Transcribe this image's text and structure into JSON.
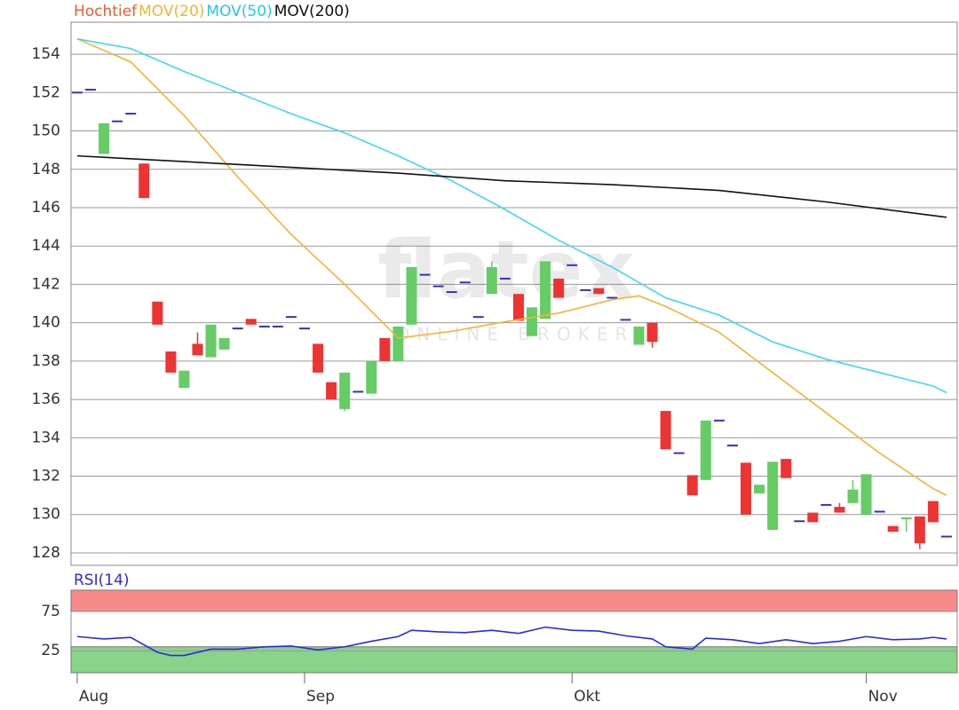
{
  "chart_data": [
    {
      "type": "candlestick",
      "name": "Hochtief",
      "name_color": "#f05a30",
      "up_color": "#66cc66",
      "down_color": "#ee3333",
      "flat_color": "#3333bb",
      "categories": [
        "Aug",
        null,
        null,
        null,
        null,
        null,
        null,
        null,
        null,
        null,
        null,
        null,
        null,
        null,
        null,
        null,
        null,
        "Sep",
        null,
        null,
        null,
        null,
        null,
        null,
        null,
        null,
        null,
        null,
        null,
        null,
        null,
        null,
        null,
        null,
        null,
        null,
        null,
        "Okt",
        null,
        null,
        null,
        null,
        null,
        null,
        null,
        null,
        null,
        null,
        null,
        null,
        null,
        null,
        null,
        null,
        null,
        null,
        null,
        null,
        null,
        "Nov",
        null,
        null,
        null,
        null,
        null,
        null
      ],
      "open": [
        152.0,
        152.15,
        148.8,
        150.5,
        150.9,
        148.3,
        141.1,
        138.5,
        136.6,
        138.9,
        138.2,
        138.6,
        139.7,
        140.2,
        139.8,
        139.8,
        140.3,
        139.7,
        138.9,
        136.9,
        135.5,
        136.4,
        136.3,
        139.2,
        138.0,
        139.9,
        142.5,
        141.9,
        141.6,
        142.1,
        140.3,
        141.5,
        142.3,
        141.5,
        139.3,
        140.2,
        142.3,
        143.0,
        141.7,
        141.8,
        141.3,
        140.15,
        138.85,
        140.0,
        135.4,
        133.2,
        132.05,
        131.8,
        134.9,
        133.6,
        132.7,
        131.1,
        129.2,
        132.9,
        129.65,
        130.1,
        130.5,
        130.4,
        130.6,
        130.0,
        130.15,
        129.4,
        129.75,
        129.9,
        130.7,
        128.85
      ],
      "high": [
        152.0,
        152.15,
        150.4,
        150.5,
        150.9,
        148.3,
        141.1,
        138.5,
        137.5,
        139.5,
        139.9,
        139.2,
        139.7,
        140.2,
        139.8,
        139.8,
        140.3,
        139.7,
        138.9,
        136.9,
        137.4,
        136.4,
        138.0,
        139.2,
        139.8,
        142.9,
        142.5,
        141.9,
        141.6,
        142.1,
        140.3,
        143.2,
        142.3,
        141.5,
        140.8,
        143.2,
        142.3,
        143.0,
        141.7,
        141.8,
        141.3,
        140.15,
        139.8,
        140.0,
        135.4,
        133.2,
        132.05,
        134.9,
        134.9,
        133.6,
        132.7,
        131.55,
        132.75,
        132.9,
        129.65,
        130.1,
        130.5,
        130.6,
        131.8,
        132.1,
        130.15,
        129.4,
        129.85,
        129.9,
        130.7,
        128.85
      ],
      "low": [
        152.0,
        152.15,
        148.8,
        150.5,
        150.9,
        146.5,
        139.9,
        137.4,
        136.6,
        138.3,
        138.2,
        138.6,
        139.7,
        139.9,
        139.8,
        139.8,
        140.3,
        139.7,
        137.4,
        136.0,
        135.4,
        136.4,
        136.3,
        138.0,
        138.0,
        139.9,
        142.5,
        141.9,
        141.6,
        142.1,
        140.3,
        141.5,
        142.3,
        140.1,
        139.3,
        140.2,
        141.3,
        143.0,
        141.7,
        141.5,
        141.3,
        140.15,
        138.85,
        138.7,
        133.4,
        133.2,
        131.0,
        131.8,
        134.9,
        133.6,
        130.0,
        131.1,
        129.2,
        131.9,
        129.65,
        129.6,
        130.5,
        130.1,
        130.6,
        130.0,
        130.15,
        129.1,
        129.1,
        128.2,
        129.6,
        128.85
      ],
      "close": [
        152.0,
        152.15,
        150.4,
        150.5,
        150.9,
        146.5,
        139.9,
        137.4,
        137.5,
        138.3,
        139.9,
        139.2,
        139.7,
        139.9,
        139.8,
        139.8,
        140.3,
        139.7,
        137.4,
        136.0,
        137.4,
        136.4,
        138.0,
        138.0,
        139.8,
        142.9,
        142.5,
        141.9,
        141.6,
        142.1,
        140.3,
        142.9,
        142.3,
        140.1,
        140.8,
        143.2,
        141.3,
        143.0,
        141.7,
        141.5,
        141.3,
        140.15,
        139.8,
        139.0,
        133.4,
        133.2,
        131.0,
        134.9,
        134.9,
        133.6,
        130.0,
        131.55,
        132.75,
        131.9,
        129.65,
        129.6,
        130.5,
        130.1,
        131.3,
        132.1,
        130.15,
        129.1,
        129.85,
        128.5,
        129.6,
        128.85
      ],
      "lines": [
        {
          "name": "MOV(20)",
          "color": "#f5b335",
          "x": [
            0,
            4,
            8,
            12,
            16,
            20,
            24,
            28,
            32,
            36,
            40,
            42,
            44,
            48,
            52,
            56,
            60,
            64,
            65
          ],
          "values": [
            154.8,
            153.6,
            150.8,
            147.6,
            144.6,
            142.0,
            139.2,
            139.55,
            140.05,
            140.5,
            141.2,
            141.4,
            140.85,
            139.5,
            137.4,
            135.3,
            133.2,
            131.35,
            131.0
          ]
        },
        {
          "name": "MOV(50)",
          "color": "#40d8f0",
          "x": [
            0,
            4,
            8,
            12,
            16,
            20,
            24,
            28,
            32,
            36,
            40,
            44,
            48,
            52,
            56,
            60,
            64,
            65
          ],
          "values": [
            154.8,
            154.3,
            153.1,
            152.0,
            150.9,
            149.9,
            148.7,
            147.4,
            145.9,
            144.3,
            142.9,
            141.3,
            140.4,
            139.0,
            138.1,
            137.4,
            136.7,
            136.35
          ]
        },
        {
          "name": "MOV(200)",
          "color": "#111111",
          "x": [
            0,
            8,
            16,
            24,
            32,
            40,
            48,
            56,
            65
          ],
          "values": [
            148.7,
            148.4,
            148.1,
            147.8,
            147.4,
            147.2,
            146.9,
            146.3,
            145.5
          ]
        }
      ],
      "xlim": [
        -0.46,
        65.8
      ],
      "ylim": [
        127.35,
        155.67
      ],
      "yticks": [
        128,
        130,
        132,
        134,
        136,
        138,
        140,
        142,
        144,
        146,
        148,
        150,
        152,
        154
      ],
      "grid": true,
      "watermark": "flatex",
      "watermark_sub": "ONLINE BROKER"
    },
    {
      "type": "line",
      "series": [
        {
          "name": "RSI(14)",
          "color": "#2a2ae0",
          "x": [
            0,
            2,
            4,
            6,
            7,
            8,
            10,
            12,
            14,
            16,
            18,
            20,
            22,
            24,
            25,
            27,
            29,
            31,
            33,
            35,
            37,
            39,
            41,
            43,
            44,
            46,
            47,
            49,
            51,
            53,
            55,
            57,
            59,
            61,
            63,
            64,
            65
          ],
          "values": [
            43,
            40,
            42,
            23,
            19,
            19,
            27,
            27,
            30,
            31,
            26,
            30,
            37,
            43,
            51,
            49,
            48,
            51,
            47,
            55,
            51,
            50,
            44,
            40,
            30,
            27,
            41,
            39,
            34,
            39,
            34,
            37,
            43,
            39,
            40,
            42,
            40
          ]
        }
      ],
      "bands": [
        {
          "range": [
            75,
            102
          ],
          "color": "#f88a8a"
        },
        {
          "range": [
            -3,
            30
          ],
          "color": "#88d488"
        }
      ],
      "xlim": [
        -0.46,
        65.8
      ],
      "ylim": [
        -3,
        102
      ],
      "yticks": [
        25,
        75
      ],
      "grid": true
    }
  ]
}
